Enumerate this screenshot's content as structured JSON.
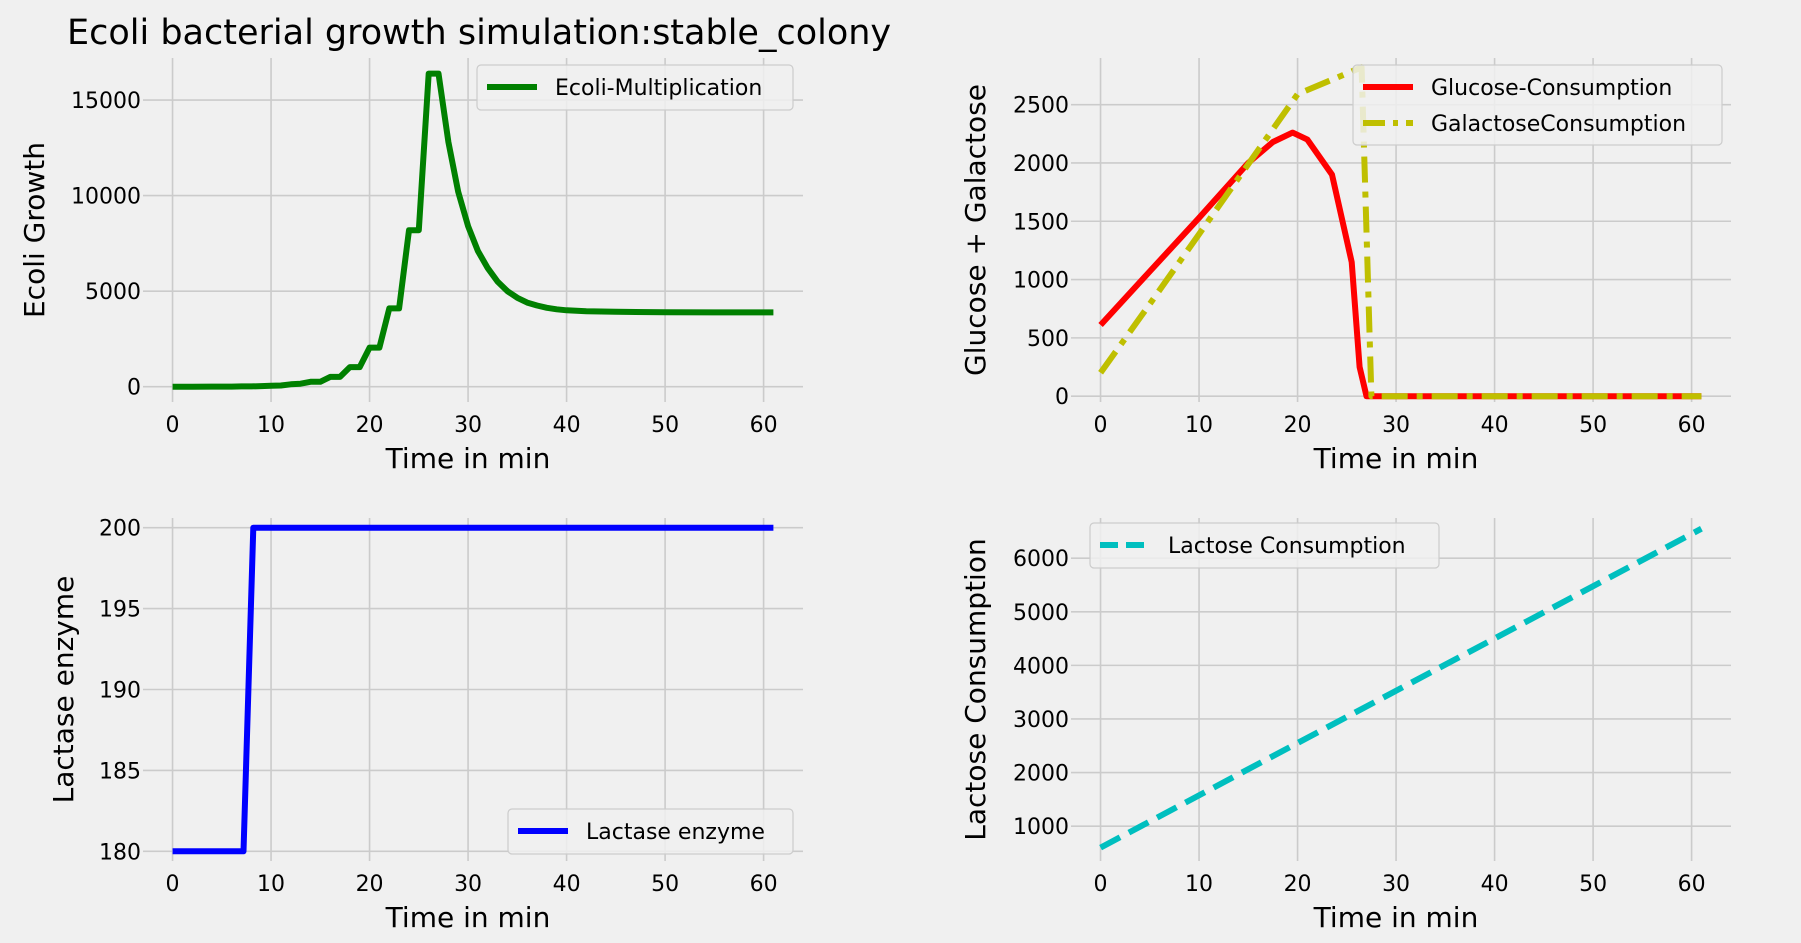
{
  "figure": {
    "title": "Ecoli bacterial growth simulation:stable_colony",
    "background": "#f0f0f0",
    "grid_color": "#cbcbcb"
  },
  "chart_data": [
    {
      "id": "ecoli",
      "type": "line",
      "title": "Ecoli bacterial growth simulation:stable_colony",
      "xlabel": "Time in min",
      "ylabel": "Ecoli Growth",
      "xlim": [
        -3,
        64
      ],
      "ylim": [
        -800,
        17200
      ],
      "xticks": [
        0,
        10,
        20,
        30,
        40,
        50,
        60
      ],
      "yticks": [
        0,
        5000,
        10000,
        15000
      ],
      "grid": true,
      "legend": "upper right",
      "series": [
        {
          "name": "Ecoli-Multiplication",
          "color": "#008000",
          "style": "solid",
          "points": [
            [
              0,
              0
            ],
            [
              2,
              2
            ],
            [
              4,
              4
            ],
            [
              6,
              8
            ],
            [
              7,
              16
            ],
            [
              8,
              16
            ],
            [
              9,
              32
            ],
            [
              10,
              48
            ],
            [
              11,
              64
            ],
            [
              12,
              128
            ],
            [
              13,
              160
            ],
            [
              14,
              256
            ],
            [
              15,
              256
            ],
            [
              16,
              512
            ],
            [
              17,
              512
            ],
            [
              18,
              1024
            ],
            [
              19,
              1024
            ],
            [
              20,
              2048
            ],
            [
              21,
              2048
            ],
            [
              22,
              4096
            ],
            [
              23,
              4096
            ],
            [
              24,
              8192
            ],
            [
              25,
              8192
            ],
            [
              26,
              16384
            ],
            [
              27,
              16384
            ],
            [
              28,
              12800
            ],
            [
              29,
              10200
            ],
            [
              30,
              8400
            ],
            [
              31,
              7100
            ],
            [
              32,
              6200
            ],
            [
              33,
              5500
            ],
            [
              34,
              5000
            ],
            [
              35,
              4650
            ],
            [
              36,
              4400
            ],
            [
              37,
              4250
            ],
            [
              38,
              4130
            ],
            [
              39,
              4050
            ],
            [
              40,
              4000
            ],
            [
              42,
              3950
            ],
            [
              45,
              3920
            ],
            [
              50,
              3900
            ],
            [
              55,
              3890
            ],
            [
              61,
              3890
            ]
          ]
        }
      ]
    },
    {
      "id": "sugars",
      "type": "line",
      "xlabel": "Time in min",
      "ylabel": "Glucose + Galactose",
      "xlim": [
        -3,
        64
      ],
      "ylim": [
        -50,
        2900
      ],
      "xticks": [
        0,
        10,
        20,
        30,
        40,
        50,
        60
      ],
      "yticks": [
        0,
        500,
        1000,
        1500,
        2000,
        2500
      ],
      "grid": true,
      "legend": "upper right",
      "series": [
        {
          "name": "Glucose-Consumption",
          "color": "#ff0000",
          "style": "solid",
          "points": [
            [
              0,
              610
            ],
            [
              5,
              1070
            ],
            [
              10,
              1530
            ],
            [
              15,
              2000
            ],
            [
              17.5,
              2180
            ],
            [
              19.5,
              2260
            ],
            [
              21,
              2200
            ],
            [
              23.5,
              1900
            ],
            [
              25.5,
              1150
            ],
            [
              26.3,
              250
            ],
            [
              27,
              0
            ],
            [
              61,
              0
            ]
          ]
        },
        {
          "name": "GalactoseConsumption",
          "color": "#bfbf00",
          "style": "dashdot",
          "points": [
            [
              0,
              200
            ],
            [
              5,
              790
            ],
            [
              10,
              1390
            ],
            [
              15,
              1990
            ],
            [
              20,
              2590
            ],
            [
              26.5,
              2820
            ],
            [
              27.5,
              0
            ],
            [
              61,
              0
            ]
          ]
        }
      ]
    },
    {
      "id": "lactase",
      "type": "line",
      "xlabel": "Time in min",
      "ylabel": "Lactase enzyme",
      "xlim": [
        -3,
        64
      ],
      "ylim": [
        179.4,
        200.6
      ],
      "xticks": [
        0,
        10,
        20,
        30,
        40,
        50,
        60
      ],
      "yticks": [
        180,
        185,
        190,
        195,
        200
      ],
      "grid": true,
      "legend": "lower right",
      "series": [
        {
          "name": "Lactase enzyme",
          "color": "#0000ff",
          "style": "solid",
          "points": [
            [
              0,
              180
            ],
            [
              7.2,
              180
            ],
            [
              8.2,
              200
            ],
            [
              61,
              200
            ]
          ]
        }
      ]
    },
    {
      "id": "lactose",
      "type": "line",
      "xlabel": "Time in min",
      "ylabel": "Lactose Consumption",
      "xlim": [
        -3,
        64
      ],
      "ylim": [
        350,
        6750
      ],
      "xticks": [
        0,
        10,
        20,
        30,
        40,
        50,
        60
      ],
      "yticks": [
        1000,
        2000,
        3000,
        4000,
        5000,
        6000
      ],
      "grid": true,
      "legend": "upper left",
      "series": [
        {
          "name": "Lactose Consumption",
          "color": "#00bfbf",
          "style": "dashed",
          "points": [
            [
              0,
              600
            ],
            [
              61,
              6550
            ]
          ]
        }
      ]
    }
  ]
}
